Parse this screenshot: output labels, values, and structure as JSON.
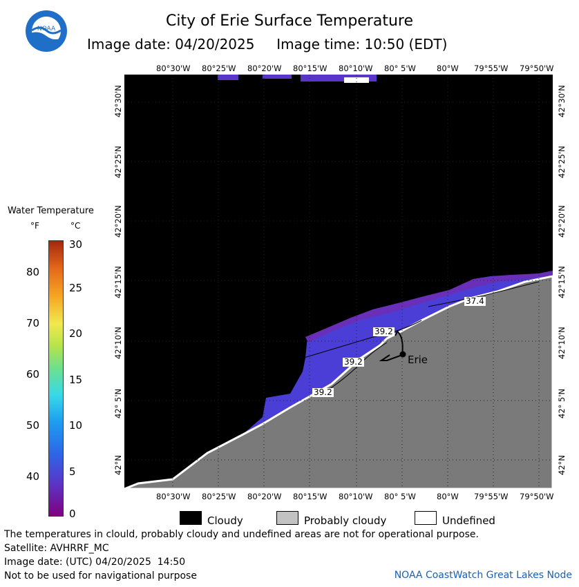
{
  "header": {
    "title": "City of Erie Surface Temperature",
    "date_label": "Image date: 04/20/2025",
    "time_label": "Image time: 10:50 (EDT)",
    "logo_text": "NOAA"
  },
  "map": {
    "lon_ticks": [
      "80°30'W",
      "80°25'W",
      "80°20'W",
      "80°15'W",
      "80°10'W",
      "80° 5'W",
      "80°W",
      "79°55'W",
      "79°50'W"
    ],
    "lat_ticks": [
      "42°30'N",
      "42°25'N",
      "42°20'N",
      "42°15'N",
      "42°10'N",
      "42° 5'N",
      "42°N"
    ],
    "city_label": "Erie",
    "contour_labels": [
      "37.4",
      "39.2",
      "39.2",
      "39.2"
    ],
    "colors": {
      "land": "#7a7a7a",
      "cloud": "#000000",
      "water_cold": "#5a36c8",
      "water_warm": "#3a46e0"
    }
  },
  "legend": {
    "title": "Water Temperature",
    "f_unit": "°F",
    "c_unit": "°C",
    "f_ticks": [
      "80",
      "70",
      "60",
      "50",
      "40"
    ],
    "c_ticks": [
      "30",
      "25",
      "20",
      "15",
      "10",
      "5",
      "0"
    ]
  },
  "key": {
    "cloudy": "Cloudy",
    "probably_cloudy": "Probably cloudy",
    "undefined": "Undefined"
  },
  "footer": {
    "note": "The temperatures in clould, probably cloudy and undefined areas are not for operational purpose.",
    "satellite": "Satellite: AVHRRF_MC",
    "utc_date": "Image date: (UTC) 04/20/2025  14:50",
    "nav": "Not to be used for navigational purpose",
    "credit": "NOAA CoastWatch Great Lakes Node"
  }
}
